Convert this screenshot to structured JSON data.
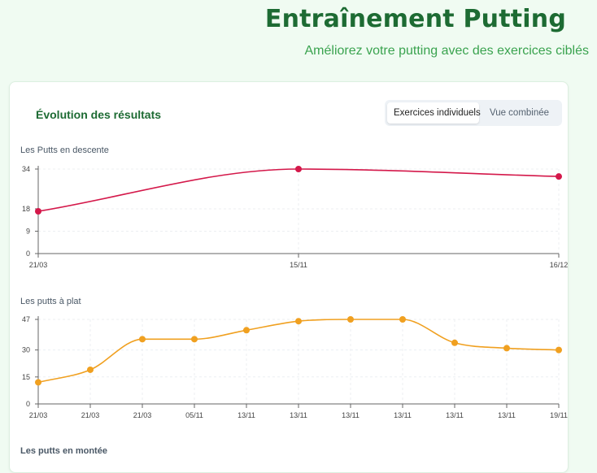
{
  "header": {
    "title": "Entraînement Putting",
    "subtitle": "Améliorez votre putting avec des exercices ciblés"
  },
  "card": {
    "title": "Évolution des résultats",
    "toggle": {
      "individual_label": "Exercices individuels",
      "combined_label": "Vue combinée",
      "selected": "individual"
    }
  },
  "chart_data": [
    {
      "type": "line",
      "title": "Les Putts en descente",
      "color": "#d4184a",
      "categories": [
        "21/03",
        "15/11",
        "16/12"
      ],
      "values": [
        17,
        34,
        31
      ],
      "yticks": [
        0,
        9,
        18,
        34
      ],
      "ylim": [
        0,
        34
      ],
      "grid": true
    },
    {
      "type": "line",
      "title": "Les putts à plat",
      "color": "#f0a020",
      "categories": [
        "21/03",
        "21/03",
        "21/03",
        "05/11",
        "13/11",
        "13/11",
        "13/11",
        "13/11",
        "13/11",
        "13/11",
        "19/11"
      ],
      "values": [
        12,
        19,
        36,
        36,
        41,
        46,
        47,
        47,
        34,
        31,
        30
      ],
      "yticks": [
        0,
        15,
        30,
        47
      ],
      "ylim": [
        0,
        47
      ],
      "grid": true
    },
    {
      "type": "line",
      "title": "Les putts en montée"
    }
  ]
}
